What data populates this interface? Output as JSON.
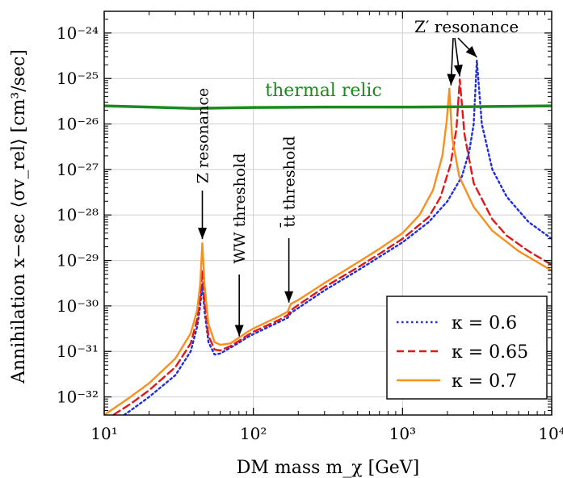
{
  "chart_data": {
    "type": "line",
    "xlabel": "DM mass m_χ [GeV]",
    "ylabel": "Annihilation x−sec ⟨σv_rel⟩ [cm³/sec]",
    "xscale": "log",
    "yscale": "log",
    "xlim": [
      10,
      10000
    ],
    "ylim": [
      4e-33,
      3e-24
    ],
    "grid": true,
    "legend_position": "bottom-right",
    "x_ticks": [
      10,
      100,
      1000,
      10000
    ],
    "x_tick_labels": [
      "10¹",
      "10²",
      "10³",
      "10⁴"
    ],
    "y_ticks": [
      1e-32,
      1e-31,
      1e-30,
      1e-29,
      1e-28,
      1e-27,
      1e-26,
      1e-25,
      1e-24
    ],
    "y_tick_labels": [
      "10⁻³²",
      "10⁻³¹",
      "10⁻³⁰",
      "10⁻²⁹",
      "10⁻²⁸",
      "10⁻²⁷",
      "10⁻²⁶",
      "10⁻²⁵",
      "10⁻²⁴"
    ],
    "series": [
      {
        "name": "κ = 0.6",
        "color": "#1f2de0",
        "style": "dotted",
        "x": [
          10,
          15,
          20,
          30,
          38,
          42,
          44,
          45.5,
          47,
          50,
          55,
          60,
          70,
          80,
          90,
          100,
          150,
          170,
          178,
          200,
          300,
          500,
          700,
          1000,
          1500,
          2000,
          2500,
          2800,
          3000,
          3150,
          3400,
          4000,
          5000,
          7000,
          10000
        ],
        "y": [
          2e-33,
          5e-33,
          1e-32,
          3e-32,
          1e-31,
          3.5e-31,
          1e-30,
          3e-30,
          8e-31,
          1.6e-31,
          8.5e-32,
          9e-32,
          1.2e-31,
          1.55e-31,
          2e-31,
          2.4e-31,
          4.5e-31,
          5.5e-31,
          7e-31,
          9e-31,
          2.2e-30,
          6e-30,
          1.2e-29,
          2.5e-29,
          7e-29,
          2e-28,
          7e-28,
          2.5e-27,
          1e-26,
          2.5e-25,
          1e-26,
          1e-27,
          2.5e-28,
          7e-29,
          3e-29
        ]
      },
      {
        "name": "κ = 0.65",
        "color": "#e01818",
        "style": "dashed",
        "x": [
          10,
          15,
          20,
          30,
          38,
          42,
          44,
          45.5,
          47,
          50,
          55,
          60,
          70,
          80,
          90,
          100,
          150,
          170,
          178,
          200,
          300,
          500,
          700,
          1000,
          1500,
          1800,
          2100,
          2300,
          2420,
          2600,
          3000,
          4000,
          5000,
          7000,
          10000
        ],
        "y": [
          3e-33,
          7e-33,
          1.4e-32,
          4.5e-32,
          1.5e-31,
          5e-31,
          1.5e-30,
          6e-30,
          1.2e-30,
          2.2e-31,
          1.1e-31,
          1.05e-31,
          1.3e-31,
          1.7e-31,
          2.2e-31,
          2.7e-31,
          5e-31,
          6.3e-31,
          8e-31,
          1.05e-30,
          2.6e-30,
          7e-30,
          1.4e-29,
          3e-29,
          9e-29,
          2.5e-28,
          1.3e-27,
          8e-27,
          9.5e-26,
          6e-27,
          5e-28,
          8e-29,
          3.5e-29,
          1.6e-29,
          8e-30
        ]
      },
      {
        "name": "κ = 0.7",
        "color": "#f7901e",
        "style": "solid",
        "x": [
          10,
          15,
          20,
          30,
          38,
          42,
          44,
          45.5,
          47,
          50,
          55,
          60,
          70,
          80,
          90,
          100,
          150,
          170,
          178,
          200,
          300,
          500,
          700,
          1000,
          1300,
          1600,
          1850,
          1980,
          2060,
          2150,
          2400,
          3000,
          4000,
          6000,
          10000
        ],
        "y": [
          4e-33,
          1e-32,
          2e-32,
          7e-32,
          2.5e-31,
          8e-31,
          3e-30,
          2.4e-29,
          3e-30,
          4e-31,
          1.6e-31,
          1.4e-31,
          1.5e-31,
          2e-31,
          2.6e-31,
          3.2e-31,
          6e-31,
          7.5e-31,
          1.1e-30,
          1.35e-30,
          3.2e-30,
          9e-30,
          1.8e-29,
          4e-29,
          1e-28,
          3.5e-28,
          2e-27,
          1.2e-26,
          6e-26,
          5e-27,
          7e-28,
          1.5e-28,
          4.5e-29,
          1.6e-29,
          6e-30
        ]
      },
      {
        "name": "thermal relic",
        "color": "#1c8a1c",
        "style": "solid",
        "x": [
          10,
          20,
          40,
          100,
          300,
          1000,
          3000,
          10000
        ],
        "y": [
          2.5e-26,
          2.35e-26,
          2.2e-26,
          2.3e-26,
          2.35e-26,
          2.35e-26,
          2.4e-26,
          2.5e-26
        ]
      }
    ],
    "annotations": {
      "thermal_relic": "thermal relic",
      "z_resonance": "Z resonance",
      "ww_threshold": "WW threshold",
      "tt_threshold": "t̄t threshold",
      "zprime_resonance": "Z′ resonance"
    }
  }
}
